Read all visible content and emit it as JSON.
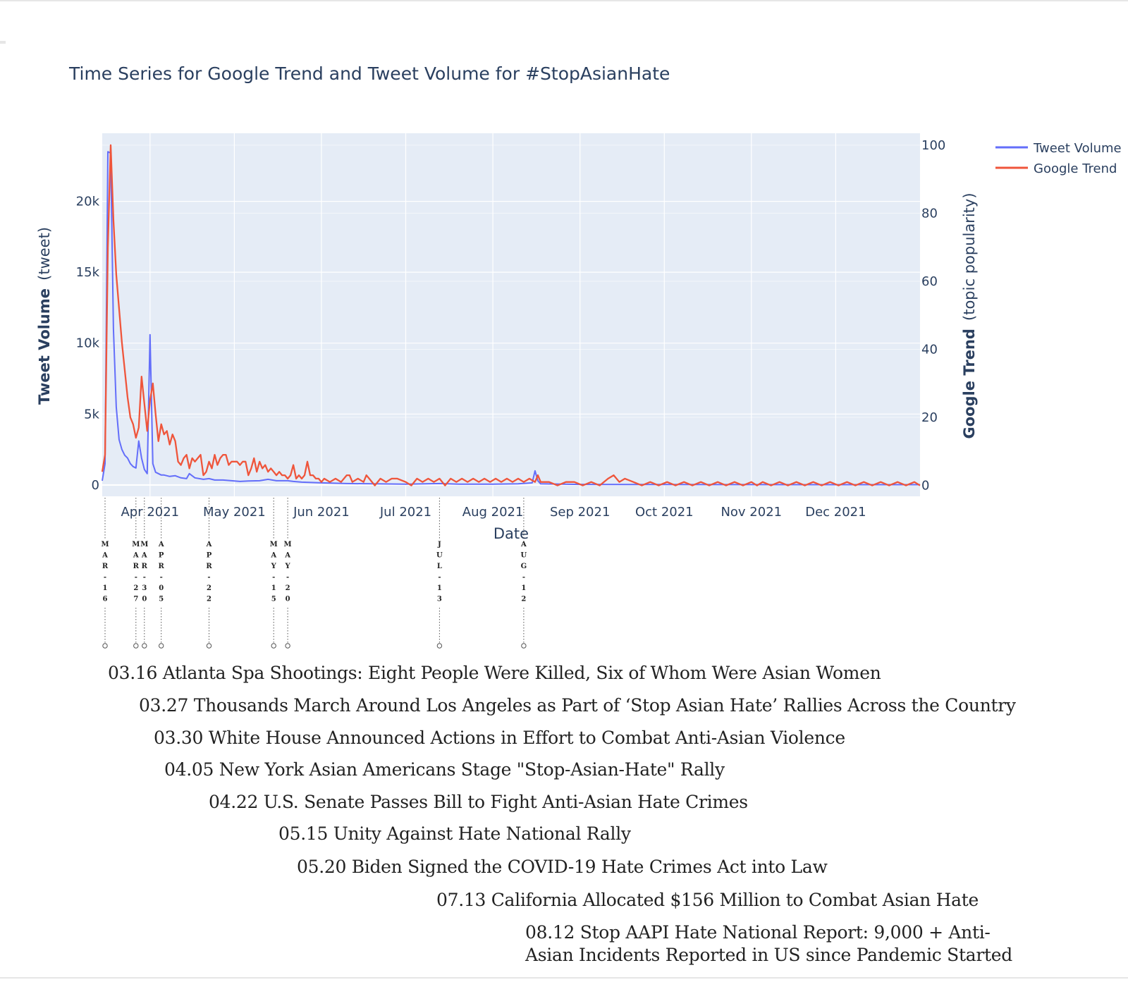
{
  "chart_data": {
    "type": "line",
    "title": "Time Series for Google Trend and Tweet Volume for #StopAsianHate",
    "xlabel": "Date",
    "ylabel_left": {
      "bold": "Tweet Volume",
      "light": "(tweet)"
    },
    "ylabel_right": {
      "bold": "Google Trend",
      "light": "(topic popularity)"
    },
    "x_range": [
      "2021-03-15",
      "2021-12-31"
    ],
    "y_left_range": [
      -800,
      24800
    ],
    "y_right_range": [
      -3.2,
      103.5
    ],
    "x_tick_labels": [
      {
        "date": "2021-04-01",
        "label": "Apr 2021"
      },
      {
        "date": "2021-05-01",
        "label": "May 2021"
      },
      {
        "date": "2021-06-01",
        "label": "Jun 2021"
      },
      {
        "date": "2021-07-01",
        "label": "Jul 2021"
      },
      {
        "date": "2021-08-01",
        "label": "Aug 2021"
      },
      {
        "date": "2021-09-01",
        "label": "Sep 2021"
      },
      {
        "date": "2021-10-01",
        "label": "Oct 2021"
      },
      {
        "date": "2021-11-01",
        "label": "Nov 2021"
      },
      {
        "date": "2021-12-01",
        "label": "Dec 2021"
      }
    ],
    "y_left_ticks": [
      {
        "value": 0,
        "label": "0"
      },
      {
        "value": 5000,
        "label": "5k"
      },
      {
        "value": 10000,
        "label": "10k"
      },
      {
        "value": 15000,
        "label": "15k"
      },
      {
        "value": 20000,
        "label": "20k"
      }
    ],
    "y_right_ticks": [
      {
        "value": 0,
        "label": "0"
      },
      {
        "value": 20,
        "label": "20"
      },
      {
        "value": 40,
        "label": "40"
      },
      {
        "value": 60,
        "label": "60"
      },
      {
        "value": 80,
        "label": "80"
      },
      {
        "value": 100,
        "label": "100"
      }
    ],
    "grid": true,
    "legend_position": "top-right",
    "series": [
      {
        "name": "Tweet Volume",
        "axis": "left",
        "color": "#636efa",
        "points": [
          [
            "2021-03-15",
            300
          ],
          [
            "2021-03-16",
            1500
          ],
          [
            "2021-03-17",
            23500
          ],
          [
            "2021-03-18",
            23400
          ],
          [
            "2021-03-19",
            11000
          ],
          [
            "2021-03-20",
            5500
          ],
          [
            "2021-03-21",
            3200
          ],
          [
            "2021-03-22",
            2500
          ],
          [
            "2021-03-23",
            2100
          ],
          [
            "2021-03-24",
            1900
          ],
          [
            "2021-03-25",
            1500
          ],
          [
            "2021-03-26",
            1300
          ],
          [
            "2021-03-27",
            1200
          ],
          [
            "2021-03-28",
            3100
          ],
          [
            "2021-03-29",
            1900
          ],
          [
            "2021-03-30",
            1100
          ],
          [
            "2021-03-31",
            800
          ],
          [
            "2021-04-01",
            10600
          ],
          [
            "2021-04-02",
            1500
          ],
          [
            "2021-04-03",
            900
          ],
          [
            "2021-04-04",
            800
          ],
          [
            "2021-04-05",
            700
          ],
          [
            "2021-04-06",
            700
          ],
          [
            "2021-04-08",
            600
          ],
          [
            "2021-04-10",
            650
          ],
          [
            "2021-04-12",
            500
          ],
          [
            "2021-04-14",
            450
          ],
          [
            "2021-04-15",
            800
          ],
          [
            "2021-04-17",
            500
          ],
          [
            "2021-04-20",
            400
          ],
          [
            "2021-04-22",
            450
          ],
          [
            "2021-04-24",
            350
          ],
          [
            "2021-04-27",
            350
          ],
          [
            "2021-04-30",
            300
          ],
          [
            "2021-05-03",
            250
          ],
          [
            "2021-05-06",
            280
          ],
          [
            "2021-05-10",
            300
          ],
          [
            "2021-05-13",
            400
          ],
          [
            "2021-05-16",
            300
          ],
          [
            "2021-05-20",
            300
          ],
          [
            "2021-05-22",
            250
          ],
          [
            "2021-05-25",
            200
          ],
          [
            "2021-06-01",
            150
          ],
          [
            "2021-06-10",
            100
          ],
          [
            "2021-06-20",
            80
          ],
          [
            "2021-07-01",
            60
          ],
          [
            "2021-07-13",
            100
          ],
          [
            "2021-07-20",
            60
          ],
          [
            "2021-08-01",
            60
          ],
          [
            "2021-08-10",
            80
          ],
          [
            "2021-08-15",
            150
          ],
          [
            "2021-08-16",
            1000
          ],
          [
            "2021-08-17",
            300
          ],
          [
            "2021-08-18",
            80
          ],
          [
            "2021-09-01",
            40
          ],
          [
            "2021-10-01",
            30
          ],
          [
            "2021-11-01",
            25
          ],
          [
            "2021-12-01",
            20
          ],
          [
            "2021-12-31",
            20
          ]
        ]
      },
      {
        "name": "Google Trend",
        "axis": "right",
        "color": "#ef553b",
        "points": [
          [
            "2021-03-15",
            4
          ],
          [
            "2021-03-16",
            9
          ],
          [
            "2021-03-17",
            70
          ],
          [
            "2021-03-18",
            100
          ],
          [
            "2021-03-19",
            78
          ],
          [
            "2021-03-20",
            62
          ],
          [
            "2021-03-21",
            52
          ],
          [
            "2021-03-22",
            42
          ],
          [
            "2021-03-23",
            34
          ],
          [
            "2021-03-24",
            26
          ],
          [
            "2021-03-25",
            20
          ],
          [
            "2021-03-26",
            18
          ],
          [
            "2021-03-27",
            14
          ],
          [
            "2021-03-28",
            17
          ],
          [
            "2021-03-29",
            32
          ],
          [
            "2021-03-30",
            24
          ],
          [
            "2021-03-31",
            16
          ],
          [
            "2021-04-01",
            25
          ],
          [
            "2021-04-02",
            30
          ],
          [
            "2021-04-03",
            21
          ],
          [
            "2021-04-04",
            13
          ],
          [
            "2021-04-05",
            18
          ],
          [
            "2021-04-06",
            15
          ],
          [
            "2021-04-07",
            16
          ],
          [
            "2021-04-08",
            12
          ],
          [
            "2021-04-09",
            15
          ],
          [
            "2021-04-10",
            13
          ],
          [
            "2021-04-11",
            7
          ],
          [
            "2021-04-12",
            6
          ],
          [
            "2021-04-13",
            8
          ],
          [
            "2021-04-14",
            9
          ],
          [
            "2021-04-15",
            5
          ],
          [
            "2021-04-16",
            8
          ],
          [
            "2021-04-17",
            7
          ],
          [
            "2021-04-18",
            8
          ],
          [
            "2021-04-19",
            9
          ],
          [
            "2021-04-20",
            3
          ],
          [
            "2021-04-21",
            4
          ],
          [
            "2021-04-22",
            7
          ],
          [
            "2021-04-23",
            5
          ],
          [
            "2021-04-24",
            9
          ],
          [
            "2021-04-25",
            6
          ],
          [
            "2021-04-26",
            8
          ],
          [
            "2021-04-27",
            9
          ],
          [
            "2021-04-28",
            9
          ],
          [
            "2021-04-29",
            6
          ],
          [
            "2021-04-30",
            7
          ],
          [
            "2021-05-01",
            7
          ],
          [
            "2021-05-02",
            7
          ],
          [
            "2021-05-03",
            6
          ],
          [
            "2021-05-04",
            7
          ],
          [
            "2021-05-05",
            7
          ],
          [
            "2021-05-06",
            3
          ],
          [
            "2021-05-07",
            5
          ],
          [
            "2021-05-08",
            8
          ],
          [
            "2021-05-09",
            4
          ],
          [
            "2021-05-10",
            7
          ],
          [
            "2021-05-11",
            5
          ],
          [
            "2021-05-12",
            6
          ],
          [
            "2021-05-13",
            4
          ],
          [
            "2021-05-14",
            5
          ],
          [
            "2021-05-15",
            4
          ],
          [
            "2021-05-16",
            3
          ],
          [
            "2021-05-17",
            4
          ],
          [
            "2021-05-18",
            3
          ],
          [
            "2021-05-19",
            3
          ],
          [
            "2021-05-20",
            2
          ],
          [
            "2021-05-21",
            3
          ],
          [
            "2021-05-22",
            6
          ],
          [
            "2021-05-23",
            2
          ],
          [
            "2021-05-24",
            3
          ],
          [
            "2021-05-25",
            2
          ],
          [
            "2021-05-26",
            3
          ],
          [
            "2021-05-27",
            7
          ],
          [
            "2021-05-28",
            3
          ],
          [
            "2021-05-29",
            3
          ],
          [
            "2021-05-30",
            2
          ],
          [
            "2021-05-31",
            2
          ],
          [
            "2021-06-01",
            1
          ],
          [
            "2021-06-02",
            2
          ],
          [
            "2021-06-04",
            1
          ],
          [
            "2021-06-06",
            2
          ],
          [
            "2021-06-08",
            1
          ],
          [
            "2021-06-10",
            3
          ],
          [
            "2021-06-11",
            3
          ],
          [
            "2021-06-12",
            1
          ],
          [
            "2021-06-14",
            2
          ],
          [
            "2021-06-16",
            1
          ],
          [
            "2021-06-17",
            3
          ],
          [
            "2021-06-18",
            2
          ],
          [
            "2021-06-20",
            0
          ],
          [
            "2021-06-22",
            2
          ],
          [
            "2021-06-24",
            1
          ],
          [
            "2021-06-26",
            2
          ],
          [
            "2021-06-28",
            2
          ],
          [
            "2021-07-01",
            1
          ],
          [
            "2021-07-03",
            0
          ],
          [
            "2021-07-05",
            2
          ],
          [
            "2021-07-07",
            1
          ],
          [
            "2021-07-09",
            2
          ],
          [
            "2021-07-11",
            1
          ],
          [
            "2021-07-13",
            2
          ],
          [
            "2021-07-15",
            0
          ],
          [
            "2021-07-17",
            2
          ],
          [
            "2021-07-19",
            1
          ],
          [
            "2021-07-21",
            2
          ],
          [
            "2021-07-23",
            1
          ],
          [
            "2021-07-25",
            2
          ],
          [
            "2021-07-27",
            1
          ],
          [
            "2021-07-29",
            2
          ],
          [
            "2021-07-31",
            1
          ],
          [
            "2021-08-02",
            2
          ],
          [
            "2021-08-04",
            1
          ],
          [
            "2021-08-06",
            2
          ],
          [
            "2021-08-08",
            1
          ],
          [
            "2021-08-10",
            2
          ],
          [
            "2021-08-12",
            1
          ],
          [
            "2021-08-14",
            2
          ],
          [
            "2021-08-16",
            1
          ],
          [
            "2021-08-17",
            3
          ],
          [
            "2021-08-18",
            1
          ],
          [
            "2021-08-21",
            1
          ],
          [
            "2021-08-24",
            0
          ],
          [
            "2021-08-27",
            1
          ],
          [
            "2021-08-30",
            1
          ],
          [
            "2021-09-02",
            0
          ],
          [
            "2021-09-05",
            1
          ],
          [
            "2021-09-08",
            0
          ],
          [
            "2021-09-11",
            2
          ],
          [
            "2021-09-13",
            3
          ],
          [
            "2021-09-15",
            1
          ],
          [
            "2021-09-17",
            2
          ],
          [
            "2021-09-20",
            1
          ],
          [
            "2021-09-23",
            0
          ],
          [
            "2021-09-26",
            1
          ],
          [
            "2021-09-29",
            0
          ],
          [
            "2021-10-02",
            1
          ],
          [
            "2021-10-05",
            0
          ],
          [
            "2021-10-08",
            1
          ],
          [
            "2021-10-11",
            0
          ],
          [
            "2021-10-14",
            1
          ],
          [
            "2021-10-17",
            0
          ],
          [
            "2021-10-20",
            1
          ],
          [
            "2021-10-23",
            0
          ],
          [
            "2021-10-26",
            1
          ],
          [
            "2021-10-29",
            0
          ],
          [
            "2021-11-01",
            1
          ],
          [
            "2021-11-03",
            0
          ],
          [
            "2021-11-05",
            1
          ],
          [
            "2021-11-08",
            0
          ],
          [
            "2021-11-11",
            1
          ],
          [
            "2021-11-14",
            0
          ],
          [
            "2021-11-17",
            1
          ],
          [
            "2021-11-20",
            0
          ],
          [
            "2021-11-23",
            1
          ],
          [
            "2021-11-26",
            0
          ],
          [
            "2021-11-29",
            1
          ],
          [
            "2021-12-02",
            0
          ],
          [
            "2021-12-05",
            1
          ],
          [
            "2021-12-08",
            0
          ],
          [
            "2021-12-11",
            1
          ],
          [
            "2021-12-14",
            0
          ],
          [
            "2021-12-17",
            1
          ],
          [
            "2021-12-20",
            0
          ],
          [
            "2021-12-23",
            1
          ],
          [
            "2021-12-26",
            0
          ],
          [
            "2021-12-29",
            1
          ],
          [
            "2021-12-31",
            0
          ]
        ]
      }
    ],
    "event_markers": [
      {
        "date": "2021-03-16",
        "label": "MAR-16"
      },
      {
        "date": "2021-03-27",
        "label": "MAR-27"
      },
      {
        "date": "2021-03-30",
        "label": "MAR-30"
      },
      {
        "date": "2021-04-05",
        "label": "APR-05"
      },
      {
        "date": "2021-04-22",
        "label": "APR-22"
      },
      {
        "date": "2021-05-15",
        "label": "MAY-15"
      },
      {
        "date": "2021-05-20",
        "label": "MAY-20"
      },
      {
        "date": "2021-07-13",
        "label": "JUL-13"
      },
      {
        "date": "2021-08-12",
        "label": "AUG-12"
      }
    ]
  },
  "events": [
    "03.16 Atlanta Spa Shootings: Eight People Were Killed, Six of Whom Were Asian Women",
    "03.27 Thousands March Around Los Angeles as Part of ‘Stop Asian Hate’ Rallies Across the Country",
    "03.30 White House Announced Actions in Effort to Combat Anti-Asian Violence",
    "04.05 New York Asian Americans Stage \"Stop-Asian-Hate\" Rally",
    "04.22 U.S. Senate Passes Bill to Fight Anti-Asian Hate Crimes",
    "05.15 Unity Against Hate National Rally",
    "05.20 Biden Signed the COVID-19 Hate Crimes Act into Law",
    "07.13 California Allocated $156 Million to Combat Asian Hate",
    "08.12  Stop AAPI Hate National Report:  9,000 + Anti-",
    "Asian Incidents Reported in US since Pandemic Started"
  ]
}
